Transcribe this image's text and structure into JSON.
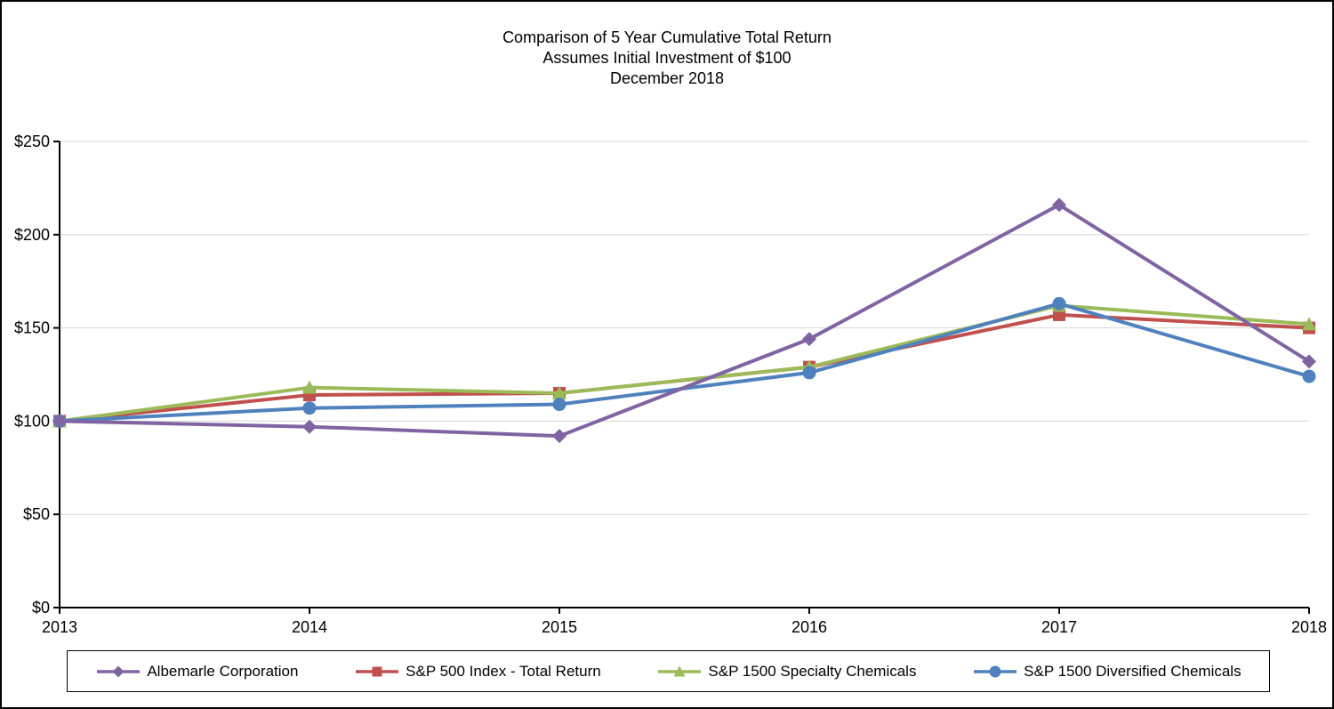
{
  "title": {
    "line1": "Comparison of 5 Year Cumulative Total Return",
    "line2": "Assumes Initial Investment of $100",
    "line3": "December 2018"
  },
  "chart_data": {
    "type": "line",
    "x_labels": [
      "2013",
      "2014",
      "2015",
      "2016",
      "2017",
      "2018"
    ],
    "y_ticks": [
      0,
      50,
      100,
      150,
      200,
      250
    ],
    "y_tick_labels": [
      "$0",
      "$50",
      "$100",
      "$150",
      "$200",
      "$250"
    ],
    "ylim": [
      0,
      250
    ],
    "grid": "horizontal",
    "legend_position": "bottom",
    "series": [
      {
        "name": "Albemarle Corporation",
        "marker": "diamond",
        "color": "#8064A2",
        "values": [
          100,
          97,
          92,
          144,
          216,
          132
        ]
      },
      {
        "name": "S&P 500 Index - Total Return",
        "marker": "square",
        "color": "#C0504D",
        "values": [
          100,
          114,
          115,
          129,
          157,
          150
        ]
      },
      {
        "name": "S&P 1500 Specialty Chemicals",
        "marker": "triangle",
        "color": "#9BBB59",
        "values": [
          100,
          118,
          115,
          129,
          162,
          152
        ]
      },
      {
        "name": "S&P 1500 Diversified Chemicals",
        "marker": "circle",
        "color": "#4F81BD",
        "values": [
          100,
          107,
          109,
          126,
          163,
          124
        ]
      }
    ]
  }
}
